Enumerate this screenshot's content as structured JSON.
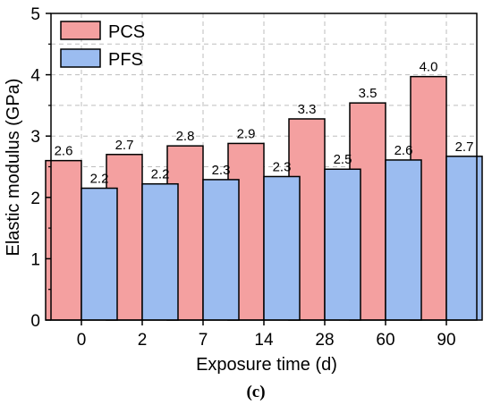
{
  "chart_data": {
    "type": "bar",
    "title": "",
    "xlabel": "Exposure time (d)",
    "ylabel": "Elastic modulus (GPa)",
    "ylim": [
      0,
      5
    ],
    "yticks": [
      "0",
      "1",
      "2",
      "3",
      "4",
      "5"
    ],
    "categories": [
      "0",
      "2",
      "7",
      "14",
      "28",
      "60",
      "90"
    ],
    "series": [
      {
        "name": "PCS",
        "color": "#f4a0a0",
        "values": [
          2.6,
          2.7,
          2.84,
          2.88,
          3.28,
          3.54,
          3.97
        ],
        "labels": [
          "2.6",
          "2.7",
          "2.8",
          "2.9",
          "3.3",
          "3.5",
          "4.0"
        ]
      },
      {
        "name": "PFS",
        "color": "#9bbcf0",
        "values": [
          2.15,
          2.22,
          2.29,
          2.34,
          2.46,
          2.61,
          2.67
        ],
        "labels": [
          "2.2",
          "2.2",
          "2.3",
          "2.3",
          "2.5",
          "2.6",
          "2.7"
        ]
      }
    ],
    "grid": true,
    "legend_position": "top-left"
  },
  "caption": "(c)"
}
